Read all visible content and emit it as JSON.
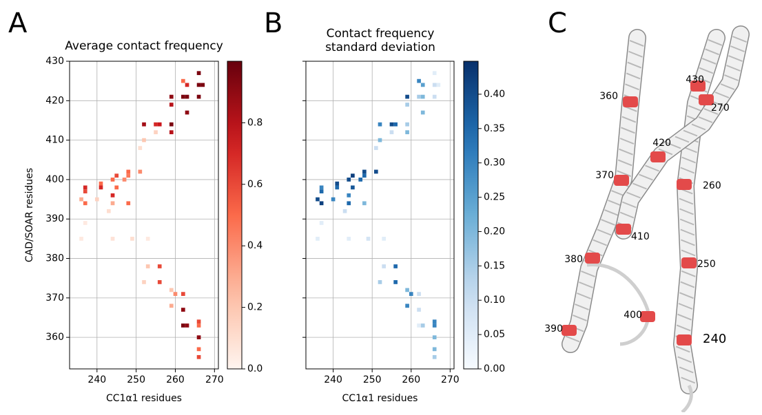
{
  "chart_data": [
    {
      "type": "heatmap",
      "panel_label": "A",
      "title": "Average contact frequency",
      "xlabel": "CC1α1 residues",
      "ylabel": "CAD/SOAR residues",
      "colormap": "Reds",
      "xlim": [
        233,
        271
      ],
      "ylim": [
        352,
        430
      ],
      "xticks": [
        240,
        250,
        260,
        270
      ],
      "yticks": [
        360,
        370,
        380,
        390,
        400,
        410,
        420,
        430
      ],
      "show_ytick_labels": true,
      "grid": true,
      "colorbar_lim": [
        0,
        1
      ],
      "colorbar_ticks": [
        {
          "value": 0,
          "label": "0.0"
        },
        {
          "value": 0.2,
          "label": "0.2"
        },
        {
          "value": 0.4,
          "label": "0.4"
        },
        {
          "value": 0.6,
          "label": "0.6"
        },
        {
          "value": 0.8,
          "label": "0.8"
        }
      ],
      "cells": [
        [
          266,
          427,
          0.95
        ],
        [
          262,
          425,
          0.5
        ],
        [
          263,
          424,
          0.7
        ],
        [
          266,
          424,
          0.95
        ],
        [
          267,
          424,
          0.95
        ],
        [
          259,
          421,
          0.9
        ],
        [
          262,
          421,
          0.95
        ],
        [
          263,
          421,
          0.95
        ],
        [
          266,
          421,
          0.95
        ],
        [
          259,
          419,
          0.8
        ],
        [
          263,
          417,
          0.9
        ],
        [
          252,
          414,
          0.85
        ],
        [
          255,
          414,
          0.7
        ],
        [
          256,
          414,
          0.75
        ],
        [
          259,
          414,
          0.95
        ],
        [
          259,
          412,
          0.8
        ],
        [
          255,
          412,
          0.15
        ],
        [
          252,
          410,
          0.2
        ],
        [
          251,
          408,
          0.1
        ],
        [
          251,
          402,
          0.4
        ],
        [
          248,
          402,
          0.5
        ],
        [
          248,
          401,
          0.45
        ],
        [
          247,
          400,
          0.4
        ],
        [
          245,
          401,
          0.6
        ],
        [
          244,
          400,
          0.5
        ],
        [
          245,
          398,
          0.5
        ],
        [
          244,
          396,
          0.7
        ],
        [
          241,
          399,
          0.5
        ],
        [
          241,
          398,
          0.7
        ],
        [
          237,
          398,
          0.7
        ],
        [
          237,
          397,
          0.6
        ],
        [
          236,
          395,
          0.3
        ],
        [
          237,
          394,
          0.5
        ],
        [
          248,
          394,
          0.5
        ],
        [
          244,
          394,
          0.3
        ],
        [
          240,
          395,
          0.15
        ],
        [
          243,
          392,
          0.1
        ],
        [
          237,
          389,
          0.05
        ],
        [
          236,
          385,
          0.05
        ],
        [
          249,
          385,
          0.1
        ],
        [
          244,
          385,
          0.08
        ],
        [
          253,
          385,
          0.05
        ],
        [
          253,
          378,
          0.2
        ],
        [
          256,
          378,
          0.6
        ],
        [
          252,
          374,
          0.15
        ],
        [
          256,
          374,
          0.6
        ],
        [
          259,
          372,
          0.2
        ],
        [
          260,
          371,
          0.4
        ],
        [
          262,
          371,
          0.6
        ],
        [
          259,
          368,
          0.3
        ],
        [
          262,
          367,
          0.9
        ],
        [
          262,
          363,
          0.95
        ],
        [
          263,
          363,
          0.9
        ],
        [
          266,
          364,
          0.6
        ],
        [
          266,
          363,
          0.5
        ],
        [
          266,
          360,
          0.9
        ],
        [
          266,
          357,
          0.5
        ],
        [
          266,
          355,
          0.6
        ]
      ]
    },
    {
      "type": "heatmap",
      "panel_label": "B",
      "title": "Contact frequency\nstandard deviation",
      "xlabel": "CC1α1 residues",
      "colormap": "Blues",
      "xlim": [
        233,
        271
      ],
      "ylim": [
        352,
        430
      ],
      "xticks": [
        240,
        250,
        260,
        270
      ],
      "yticks": [
        360,
        370,
        380,
        390,
        400,
        410,
        420,
        430
      ],
      "show_ytick_labels": false,
      "grid": true,
      "colorbar_lim": [
        0,
        0.448
      ],
      "colorbar_ticks": [
        {
          "value": 0,
          "label": "0.00"
        },
        {
          "value": 0.05,
          "label": "0.05"
        },
        {
          "value": 0.1,
          "label": "0.10"
        },
        {
          "value": 0.15,
          "label": "0.15"
        },
        {
          "value": 0.2,
          "label": "0.20"
        },
        {
          "value": 0.25,
          "label": "0.25"
        },
        {
          "value": 0.3,
          "label": "0.30"
        },
        {
          "value": 0.35,
          "label": "0.35"
        },
        {
          "value": 0.4,
          "label": "0.40"
        }
      ],
      "cells": [
        [
          266,
          427,
          0.05
        ],
        [
          262,
          425,
          0.3
        ],
        [
          263,
          424,
          0.25
        ],
        [
          266,
          424,
          0.1
        ],
        [
          267,
          424,
          0.05
        ],
        [
          259,
          421,
          0.4
        ],
        [
          262,
          421,
          0.15
        ],
        [
          263,
          421,
          0.2
        ],
        [
          266,
          421,
          0.1
        ],
        [
          259,
          419,
          0.15
        ],
        [
          263,
          417,
          0.2
        ],
        [
          252,
          414,
          0.3
        ],
        [
          255,
          414,
          0.4
        ],
        [
          256,
          414,
          0.35
        ],
        [
          259,
          414,
          0.15
        ],
        [
          259,
          412,
          0.2
        ],
        [
          255,
          412,
          0.1
        ],
        [
          252,
          410,
          0.2
        ],
        [
          251,
          408,
          0.1
        ],
        [
          251,
          402,
          0.4
        ],
        [
          248,
          402,
          0.4
        ],
        [
          248,
          401,
          0.35
        ],
        [
          247,
          400,
          0.35
        ],
        [
          245,
          401,
          0.42
        ],
        [
          244,
          400,
          0.4
        ],
        [
          245,
          398,
          0.38
        ],
        [
          244,
          396,
          0.3
        ],
        [
          241,
          399,
          0.4
        ],
        [
          241,
          398,
          0.35
        ],
        [
          237,
          398,
          0.3
        ],
        [
          237,
          397,
          0.35
        ],
        [
          236,
          395,
          0.4
        ],
        [
          237,
          394,
          0.42
        ],
        [
          248,
          394,
          0.2
        ],
        [
          244,
          394,
          0.35
        ],
        [
          240,
          395,
          0.3
        ],
        [
          243,
          392,
          0.1
        ],
        [
          237,
          389,
          0.05
        ],
        [
          236,
          385,
          0.05
        ],
        [
          249,
          385,
          0.08
        ],
        [
          244,
          385,
          0.05
        ],
        [
          253,
          385,
          0.05
        ],
        [
          253,
          378,
          0.1
        ],
        [
          256,
          378,
          0.35
        ],
        [
          252,
          374,
          0.15
        ],
        [
          256,
          374,
          0.35
        ],
        [
          259,
          372,
          0.2
        ],
        [
          260,
          371,
          0.3
        ],
        [
          262,
          371,
          0.1
        ],
        [
          259,
          368,
          0.3
        ],
        [
          262,
          367,
          0.1
        ],
        [
          262,
          363,
          0.05
        ],
        [
          263,
          363,
          0.15
        ],
        [
          266,
          364,
          0.3
        ],
        [
          266,
          363,
          0.3
        ],
        [
          266,
          360,
          0.2
        ],
        [
          266,
          357,
          0.2
        ],
        [
          266,
          355,
          0.15
        ]
      ]
    }
  ],
  "panel_c": {
    "letter": "C",
    "labels": [
      "360",
      "430",
      "270",
      "420",
      "370",
      "260",
      "410",
      "380",
      "250",
      "400",
      "390",
      "240"
    ]
  }
}
